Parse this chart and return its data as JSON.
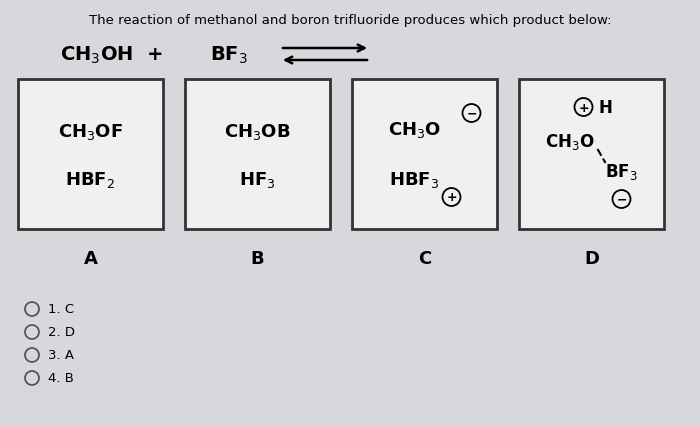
{
  "title": "The reaction of methanol and boron trifluoride produces which product below:",
  "title_fontsize": 9.5,
  "bg_color": "#d8d8dc",
  "box_bg": "#f0f0f0",
  "box_edge": "#333333",
  "options": [
    "1. C",
    "2. D",
    "3. A",
    "4. B"
  ]
}
